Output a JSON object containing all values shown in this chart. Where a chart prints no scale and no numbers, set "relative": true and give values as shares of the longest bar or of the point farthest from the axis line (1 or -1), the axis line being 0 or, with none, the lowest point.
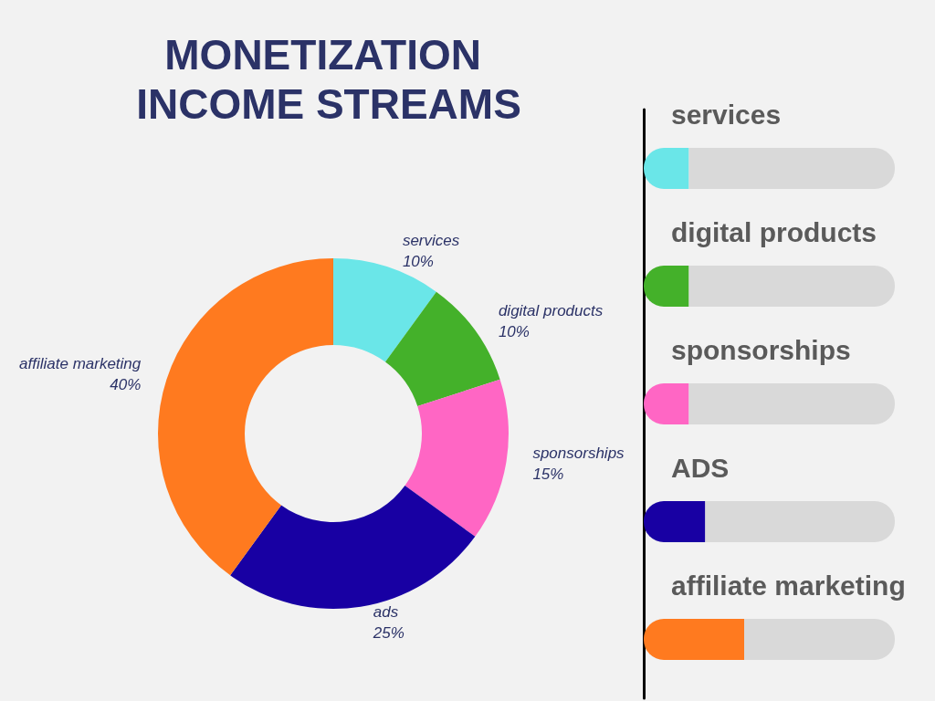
{
  "chart_data": [
    {
      "type": "donut",
      "title": "MONETIZATION INCOME STREAMS",
      "categories": [
        "services",
        "digital products",
        "sponsorships",
        "ads",
        "affiliate marketing"
      ],
      "values": [
        10,
        10,
        15,
        25,
        40
      ],
      "value_labels": [
        "10%",
        "10%",
        "15%",
        "25%",
        "40%"
      ],
      "colors": [
        "#6ae6e8",
        "#44b12a",
        "#ff66c4",
        "#1800a3",
        "#ff7a1f"
      ]
    },
    {
      "type": "bar",
      "orientation": "horizontal",
      "relative": true,
      "stacked": true,
      "categories": [
        "services",
        "digital products",
        "sponsorships",
        "ADS",
        "affiliate marketing"
      ],
      "series": [
        {
          "colors": [
            "#6ae6e8",
            "#44b12a",
            "#ff66c4",
            "#1800a3",
            "#ff7a1f"
          ],
          "values": [
            0.18,
            0.18,
            0.18,
            0.245,
            0.4
          ]
        },
        {
          "color": "#d9d9d9",
          "values": [
            0.82,
            0.82,
            0.82,
            0.755,
            0.6
          ]
        }
      ]
    }
  ]
}
